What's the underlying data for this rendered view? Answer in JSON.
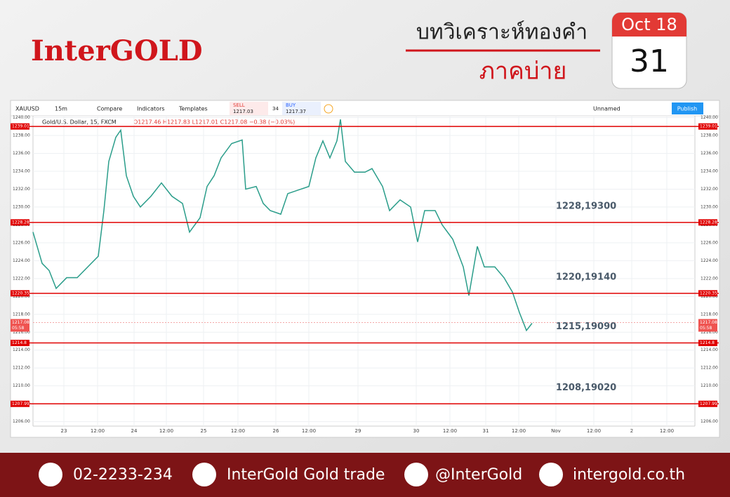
{
  "header": {
    "brand": "InterGOLD",
    "title": "บทวิเคราะห์ทองคำ",
    "subtitle": "ภาคบ่าย",
    "date_month": "Oct 18",
    "date_day": "31"
  },
  "toolbar": {
    "symbol": "XAUUSD",
    "interval": "15m",
    "compare": "Compare",
    "indicators": "Indicators",
    "templates": "Templates",
    "sell": "SELL",
    "sell_price": "1217.03",
    "spread": "34",
    "buy": "BUY",
    "buy_price": "1217.37",
    "layout": "Unnamed",
    "publish": "Publish"
  },
  "chart_data": {
    "type": "line",
    "legend_name": "Gold/U.S. Dollar, 15, FXCM",
    "ohlc_text": "O1217.46 H1217.83 L1217.01 C1217.08 −0.38 (−0.03%)",
    "x": [
      0.12,
      0.38,
      0.58,
      0.78,
      1.08,
      1.38,
      1.68,
      1.98,
      2.14,
      2.28,
      2.48,
      2.62,
      2.78,
      2.98,
      3.18,
      3.48,
      3.78,
      4.08,
      4.38,
      4.58,
      4.88,
      5.08,
      5.28,
      5.48,
      5.78,
      6.08,
      6.18,
      6.48,
      6.68,
      6.88,
      7.18,
      7.38,
      7.68,
      7.98,
      8.18,
      8.38,
      8.58,
      8.78,
      8.88,
      9.02,
      9.28,
      9.58,
      9.78,
      10.08,
      10.28,
      10.58,
      10.88,
      11.08,
      11.28,
      11.58,
      11.78,
      12.08,
      12.38,
      12.54,
      12.78,
      12.98,
      13.28,
      13.54,
      13.78,
      13.98,
      14.18,
      14.34
    ],
    "values": [
      1227.2,
      1223.7,
      1222.9,
      1220.9,
      1222.1,
      1222.1,
      1223.3,
      1224.5,
      1229.6,
      1235.1,
      1237.8,
      1238.6,
      1233.5,
      1231.2,
      1230.0,
      1231.2,
      1232.7,
      1231.2,
      1230.4,
      1227.2,
      1228.8,
      1232.3,
      1233.5,
      1235.5,
      1237.1,
      1237.5,
      1232.0,
      1232.3,
      1230.4,
      1229.6,
      1229.2,
      1231.5,
      1231.9,
      1232.3,
      1235.5,
      1237.4,
      1235.5,
      1237.4,
      1239.8,
      1235.1,
      1233.9,
      1233.9,
      1234.3,
      1232.3,
      1229.6,
      1230.8,
      1230.0,
      1226.1,
      1229.6,
      1229.6,
      1228.0,
      1226.4,
      1223.3,
      1220.1,
      1225.6,
      1223.3,
      1223.3,
      1222.1,
      1220.5,
      1218.2,
      1216.2,
      1217.0
    ],
    "color": "#2a9d8a",
    "xlim": [
      0.12,
      18.98
    ],
    "xticks": [
      {
        "value": 1,
        "label": "23"
      },
      {
        "value": 1.96,
        "label": "12:00"
      },
      {
        "value": 3,
        "label": "24"
      },
      {
        "value": 3.92,
        "label": "12:00"
      },
      {
        "value": 4.98,
        "label": "25"
      },
      {
        "value": 5.96,
        "label": "12:00"
      },
      {
        "value": 7.04,
        "label": "26"
      },
      {
        "value": 7.98,
        "label": "12:00"
      },
      {
        "value": 9.38,
        "label": "29"
      },
      {
        "value": 11.04,
        "label": "30"
      },
      {
        "value": 12,
        "label": "12:00"
      },
      {
        "value": 13.02,
        "label": "31"
      },
      {
        "value": 13.96,
        "label": "12:00"
      },
      {
        "value": 15.02,
        "label": "Nov"
      },
      {
        "value": 16.1,
        "label": "12:00"
      },
      {
        "value": 17.18,
        "label": "2"
      },
      {
        "value": 18.18,
        "label": "12:00"
      }
    ],
    "ylim": [
      1205.5,
      1240.2
    ],
    "yticks": [
      {
        "value": 1206,
        "label": "1206.00"
      },
      {
        "value": 1208,
        "label": "1208.00"
      },
      {
        "value": 1210,
        "label": "1210.00"
      },
      {
        "value": 1212,
        "label": "1212.00"
      },
      {
        "value": 1214,
        "label": "1214.00"
      },
      {
        "value": 1216,
        "label": "1216.00"
      },
      {
        "value": 1218,
        "label": "1218.00"
      },
      {
        "value": 1220,
        "label": "1220.00"
      },
      {
        "value": 1222,
        "label": "1222.00"
      },
      {
        "value": 1224,
        "label": "1224.00"
      },
      {
        "value": 1226,
        "label": "1226.00"
      },
      {
        "value": 1228,
        "label": "1228.00"
      },
      {
        "value": 1230,
        "label": "1230.00"
      },
      {
        "value": 1232,
        "label": "1232.00"
      },
      {
        "value": 1234,
        "label": "1234.00"
      },
      {
        "value": 1236,
        "label": "1236.00"
      },
      {
        "value": 1238,
        "label": "1238.00"
      },
      {
        "value": 1240,
        "label": "1240.00"
      }
    ],
    "grid": true,
    "levels": [
      {
        "value": 1239.01
      },
      {
        "value": 1228.28,
        "note": "1228,19300"
      },
      {
        "value": 1220.35,
        "note": "1220,19140"
      },
      {
        "value": 1214.8,
        "note": "1215,19090"
      },
      {
        "value": 1207.99,
        "note": "1208,19020"
      }
    ],
    "level_color": "#e00000",
    "last_price": {
      "value": 1217.08,
      "countdown": "05:58"
    }
  },
  "footer": {
    "phone": "02-2233-234",
    "facebook": "InterGold Gold trade",
    "line": "@InterGold",
    "web": "intergold.co.th"
  }
}
